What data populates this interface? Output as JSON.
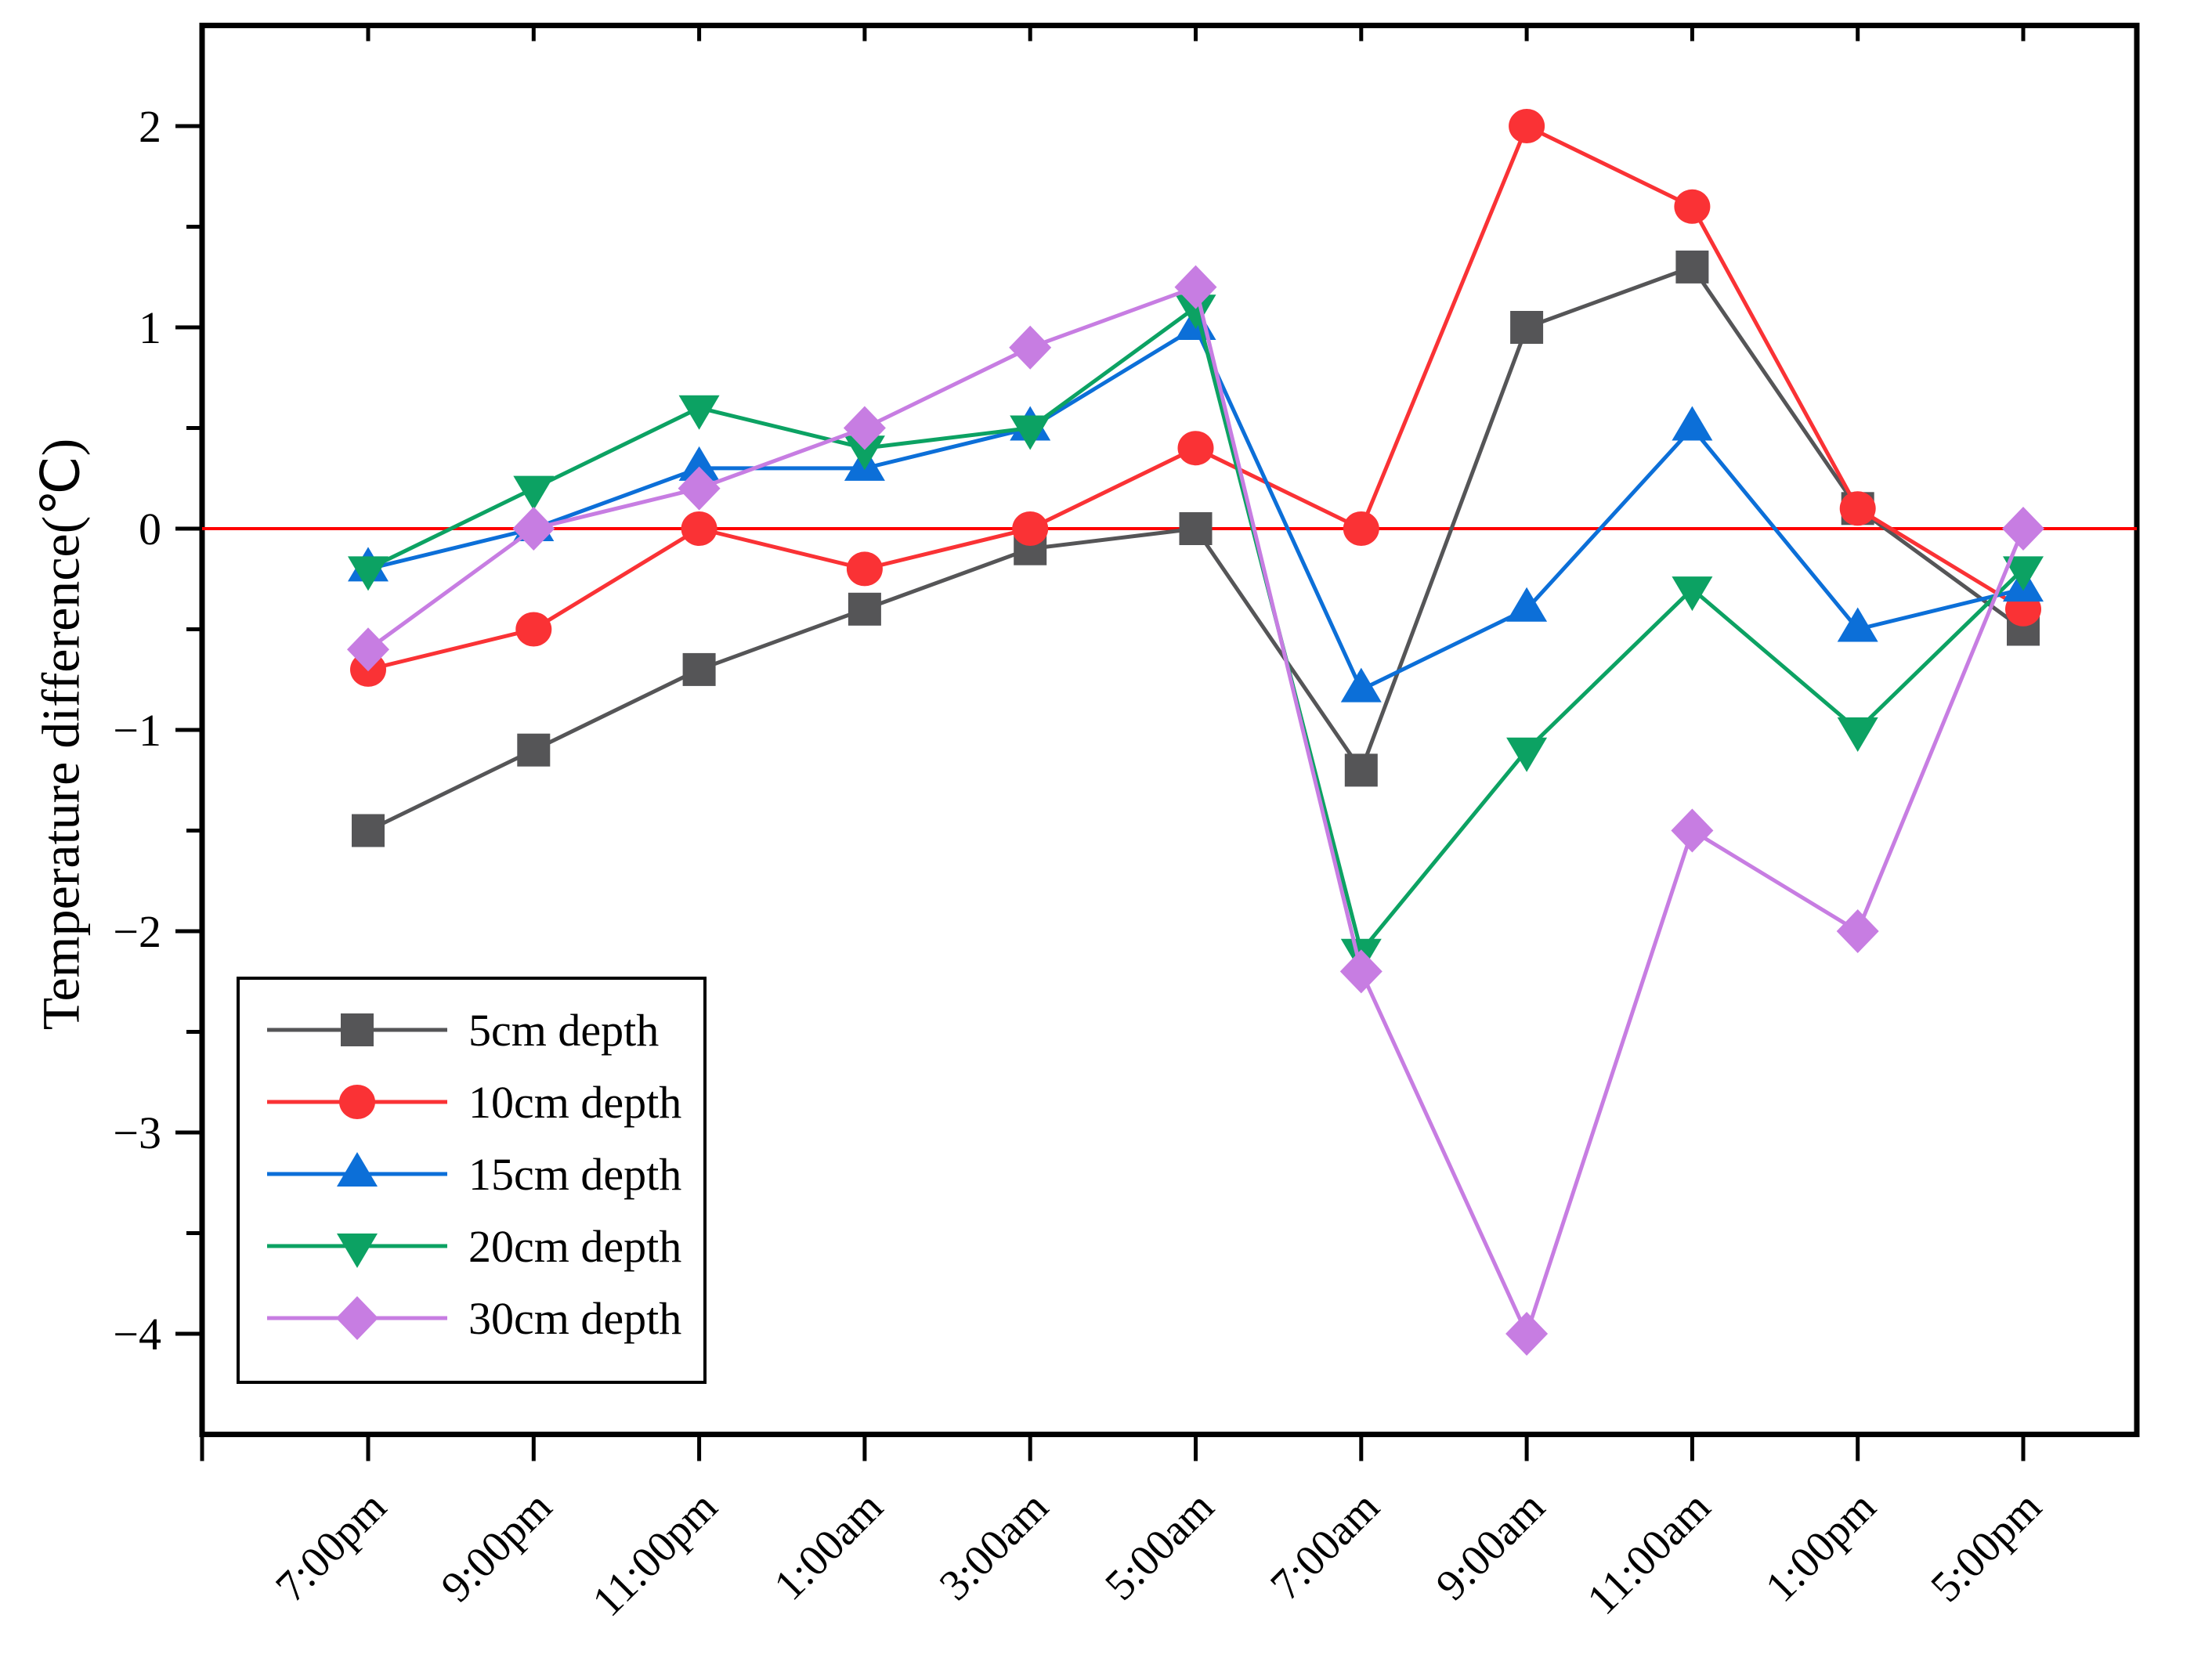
{
  "chart_data": {
    "type": "line",
    "title": "",
    "xlabel": "",
    "ylabel": "Temperature difference(℃)",
    "categories": [
      "7:00pm",
      "9:00pm",
      "11:00pm",
      "1:00am",
      "3:00am",
      "5:00am",
      "7:00am",
      "9:00am",
      "11:00am",
      "1:00pm",
      "5:00pm"
    ],
    "series": [
      {
        "name": "5cm depth",
        "marker": "square",
        "color": "#555557",
        "values": [
          -1.5,
          -1.1,
          -0.7,
          -0.4,
          -0.1,
          0.0,
          -1.2,
          1.0,
          1.3,
          0.1,
          -0.5
        ]
      },
      {
        "name": "10cm depth",
        "marker": "circle",
        "color": "#fa3235",
        "values": [
          -0.7,
          -0.5,
          0.0,
          -0.2,
          0.0,
          0.4,
          0.0,
          2.0,
          1.6,
          0.1,
          -0.4
        ]
      },
      {
        "name": "15cm depth",
        "marker": "triangle-up",
        "color": "#0c6fd8",
        "values": [
          -0.2,
          0.0,
          0.3,
          0.3,
          0.5,
          1.0,
          -0.8,
          -0.4,
          0.5,
          -0.5,
          -0.3
        ]
      },
      {
        "name": "20cm depth",
        "marker": "triangle-down",
        "color": "#0ca263",
        "values": [
          -0.2,
          0.2,
          0.6,
          0.4,
          0.5,
          1.1,
          -2.1,
          -1.1,
          -0.3,
          -1.0,
          -0.2
        ]
      },
      {
        "name": "30cm depth",
        "marker": "diamond",
        "color": "#c77de2",
        "values": [
          -0.6,
          0.0,
          0.2,
          0.5,
          0.9,
          1.2,
          -2.2,
          -4.0,
          -1.5,
          -2.0,
          0.0
        ]
      }
    ],
    "ylim": [
      -4.5,
      2.5
    ],
    "ytick_values": [
      2,
      1,
      0,
      -1,
      -2,
      -3,
      -4
    ],
    "ytick_labels": [
      "2",
      "1",
      "0",
      "−1",
      "−2",
      "−3",
      "−4"
    ],
    "yminor_values": [
      1.5,
      0.5,
      -0.5,
      -1.5,
      -2.5,
      -3.5
    ],
    "zero_line": {
      "value": 0,
      "color": "#ff0000"
    },
    "axis_color": "#000000",
    "legend_position": "bottom-left",
    "grid": false
  }
}
